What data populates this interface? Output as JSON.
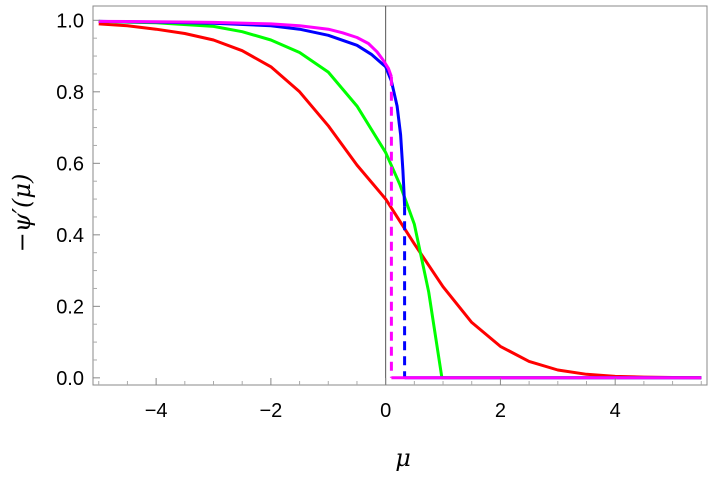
{
  "chart_data": {
    "type": "line",
    "xlabel": "μ",
    "ylabel": "−ψ′(μ)",
    "xlim": [
      -5.1,
      5.6
    ],
    "ylim": [
      -0.02,
      1.04
    ],
    "x_ticks": [
      -4,
      -2,
      0,
      2,
      4
    ],
    "x_tick_labels": [
      "−4",
      "−2",
      "0",
      "2",
      "4"
    ],
    "y_ticks": [
      0.0,
      0.2,
      0.4,
      0.6,
      0.8,
      1.0
    ],
    "y_tick_labels": [
      "0.0",
      "0.2",
      "0.4",
      "0.6",
      "0.8",
      "1.0"
    ],
    "grid": false,
    "vertical_reference_line_x": 0,
    "series": [
      {
        "color": "#ff00ff",
        "solid_points": [
          [
            -5.0,
            0.997
          ],
          [
            -4.0,
            0.996
          ],
          [
            -3.0,
            0.994
          ],
          [
            -2.0,
            0.99
          ],
          [
            -1.5,
            0.985
          ],
          [
            -1.0,
            0.975
          ],
          [
            -0.75,
            0.965
          ],
          [
            -0.5,
            0.952
          ],
          [
            -0.3,
            0.935
          ],
          [
            -0.15,
            0.912
          ],
          [
            -0.05,
            0.89
          ],
          [
            0.05,
            0.865
          ],
          [
            0.1,
            0.842
          ]
        ],
        "dashed_points": [
          [
            0.1,
            0.842
          ],
          [
            0.1,
            0.0
          ]
        ],
        "tail_points": [
          [
            0.1,
            0.0
          ],
          [
            5.5,
            0.0
          ]
        ]
      },
      {
        "color": "#0000ff",
        "solid_points": [
          [
            -5.0,
            0.997
          ],
          [
            -4.0,
            0.995
          ],
          [
            -3.0,
            0.992
          ],
          [
            -2.0,
            0.985
          ],
          [
            -1.5,
            0.975
          ],
          [
            -1.0,
            0.958
          ],
          [
            -0.5,
            0.93
          ],
          [
            -0.25,
            0.905
          ],
          [
            0.0,
            0.87
          ],
          [
            0.1,
            0.83
          ],
          [
            0.2,
            0.76
          ],
          [
            0.26,
            0.68
          ],
          [
            0.3,
            0.58
          ],
          [
            0.32,
            0.52
          ],
          [
            0.33,
            0.48
          ]
        ],
        "dashed_points": [
          [
            0.33,
            0.48
          ],
          [
            0.33,
            0.0
          ]
        ],
        "tail_points": [
          [
            0.33,
            0.0
          ],
          [
            5.5,
            0.0
          ]
        ]
      },
      {
        "color": "#00ff00",
        "solid_points": [
          [
            -5.0,
            0.997
          ],
          [
            -4.0,
            0.993
          ],
          [
            -3.0,
            0.983
          ],
          [
            -2.5,
            0.968
          ],
          [
            -2.0,
            0.945
          ],
          [
            -1.5,
            0.91
          ],
          [
            -1.0,
            0.855
          ],
          [
            -0.5,
            0.76
          ],
          [
            0.0,
            0.63
          ],
          [
            0.25,
            0.54
          ],
          [
            0.5,
            0.43
          ],
          [
            0.75,
            0.24
          ],
          [
            0.98,
            0.0
          ],
          [
            5.5,
            0.0
          ]
        ],
        "dashed_points": [],
        "tail_points": []
      },
      {
        "color": "#ff0000",
        "solid_points": [
          [
            -5.0,
            0.99
          ],
          [
            -4.5,
            0.985
          ],
          [
            -4.0,
            0.975
          ],
          [
            -3.5,
            0.963
          ],
          [
            -3.0,
            0.945
          ],
          [
            -2.5,
            0.915
          ],
          [
            -2.0,
            0.87
          ],
          [
            -1.5,
            0.8
          ],
          [
            -1.0,
            0.705
          ],
          [
            -0.5,
            0.595
          ],
          [
            0.0,
            0.5
          ],
          [
            0.5,
            0.375
          ],
          [
            1.0,
            0.255
          ],
          [
            1.5,
            0.155
          ],
          [
            2.0,
            0.088
          ],
          [
            2.5,
            0.046
          ],
          [
            3.0,
            0.022
          ],
          [
            3.5,
            0.01
          ],
          [
            4.0,
            0.004
          ],
          [
            4.5,
            0.002
          ],
          [
            5.0,
            0.001
          ],
          [
            5.5,
            0.0
          ]
        ],
        "dashed_points": [],
        "tail_points": []
      }
    ]
  }
}
